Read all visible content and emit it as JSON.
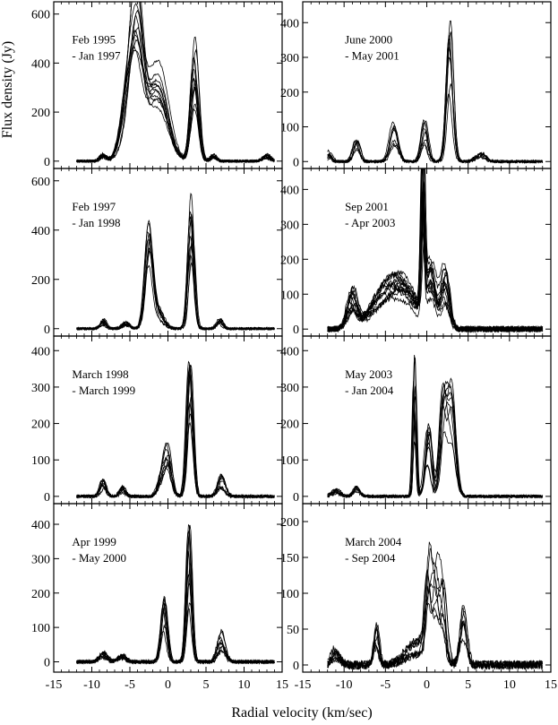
{
  "figure": {
    "xlabel": "Radial velocity (km/sec)",
    "ylabel": "Flux density (Jy)"
  },
  "chart_data": [
    {
      "type": "line",
      "column": 0,
      "row": 0,
      "label_lines": [
        "Feb 1995",
        " - Jan 1997"
      ],
      "xlim": [
        -15,
        15
      ],
      "ylim": [
        -30,
        650
      ],
      "xticks": [
        -15,
        -10,
        -5,
        0,
        5,
        10,
        15
      ],
      "yticks": [
        0,
        200,
        400,
        600
      ],
      "peaks": [
        [
          3.5,
          560,
          0.5
        ],
        [
          -4,
          500,
          0.8
        ],
        [
          -5,
          350,
          1.0
        ],
        [
          -2,
          250,
          1.5
        ],
        [
          -1,
          200,
          1.2
        ],
        [
          -8.5,
          30,
          0.4
        ],
        [
          13,
          30,
          0.5
        ],
        [
          6,
          30,
          0.4
        ]
      ],
      "n_curves": 12,
      "noise": 5
    },
    {
      "type": "line",
      "column": 1,
      "row": 0,
      "label_lines": [
        "June 2000",
        " - May 2001"
      ],
      "xlim": [
        -15,
        15
      ],
      "ylim": [
        -20,
        460
      ],
      "xticks": [
        -15,
        -10,
        -5,
        0,
        5,
        10,
        15
      ],
      "yticks": [
        0,
        100,
        200,
        300,
        400
      ],
      "peaks": [
        [
          2.8,
          420,
          0.4
        ],
        [
          -4,
          120,
          0.5
        ],
        [
          -0.3,
          120,
          0.4
        ],
        [
          -8.5,
          65,
          0.4
        ],
        [
          -11.8,
          30,
          0.3
        ],
        [
          6.5,
          25,
          0.6
        ]
      ],
      "n_curves": 8,
      "noise": 4
    },
    {
      "type": "line",
      "column": 0,
      "row": 1,
      "label_lines": [
        "Feb 1997",
        " - Jan 1998"
      ],
      "xlim": [
        -15,
        15
      ],
      "ylim": [
        -30,
        650
      ],
      "xticks": [
        -15,
        -10,
        -5,
        0,
        5,
        10,
        15
      ],
      "yticks": [
        0,
        200,
        400,
        600
      ],
      "peaks": [
        [
          3.1,
          560,
          0.4
        ],
        [
          -2.5,
          500,
          0.5
        ],
        [
          -1.5,
          100,
          0.8
        ],
        [
          6.8,
          40,
          0.4
        ],
        [
          -8.5,
          40,
          0.4
        ],
        [
          -5.5,
          30,
          0.5
        ]
      ],
      "n_curves": 10,
      "noise": 5
    },
    {
      "type": "line",
      "column": 1,
      "row": 1,
      "label_lines": [
        "Sep 2001",
        " - Apr 2003"
      ],
      "xlim": [
        -15,
        15
      ],
      "ylim": [
        -20,
        460
      ],
      "xticks": [
        -15,
        -10,
        -5,
        0,
        5,
        10,
        15
      ],
      "yticks": [
        0,
        100,
        200,
        300,
        400
      ],
      "peaks": [
        [
          -0.5,
          500,
          0.2
        ],
        [
          0.5,
          200,
          0.6
        ],
        [
          2.2,
          180,
          0.5
        ],
        [
          -2.5,
          120,
          1.5
        ],
        [
          -4.5,
          100,
          1.5
        ],
        [
          -9,
          120,
          0.6
        ],
        [
          -6,
          60,
          1.5
        ]
      ],
      "n_curves": 14,
      "noise": 8
    },
    {
      "type": "line",
      "column": 0,
      "row": 2,
      "label_lines": [
        "March 1998",
        " - March 1999"
      ],
      "xlim": [
        -15,
        15
      ],
      "ylim": [
        -20,
        440
      ],
      "xticks": [
        -15,
        -10,
        -5,
        0,
        5,
        10,
        15
      ],
      "yticks": [
        0,
        100,
        200,
        300,
        400
      ],
      "peaks": [
        [
          2.9,
          380,
          0.4
        ],
        [
          0,
          140,
          0.5
        ],
        [
          -0.8,
          60,
          0.5
        ],
        [
          7,
          60,
          0.5
        ],
        [
          -8.5,
          50,
          0.4
        ],
        [
          -6,
          30,
          0.4
        ]
      ],
      "n_curves": 10,
      "noise": 4
    },
    {
      "type": "line",
      "column": 1,
      "row": 2,
      "label_lines": [
        "May 2003",
        " - Jan 2004"
      ],
      "xlim": [
        -15,
        15
      ],
      "ylim": [
        -20,
        440
      ],
      "xticks": [
        -15,
        -10,
        -5,
        0,
        5,
        10,
        15
      ],
      "yticks": [
        0,
        100,
        200,
        300,
        400
      ],
      "peaks": [
        [
          3,
          360,
          0.5
        ],
        [
          2,
          280,
          0.4
        ],
        [
          -1.5,
          420,
          0.2
        ],
        [
          0.2,
          220,
          0.4
        ],
        [
          -8.5,
          30,
          0.4
        ],
        [
          -11,
          20,
          0.5
        ]
      ],
      "n_curves": 9,
      "noise": 4
    },
    {
      "type": "line",
      "column": 0,
      "row": 3,
      "label_lines": [
        "Apr 1999",
        " - May 2000"
      ],
      "xlim": [
        -15,
        15
      ],
      "ylim": [
        -30,
        460
      ],
      "xticks": [
        -15,
        -10,
        -5,
        0,
        5,
        10,
        15
      ],
      "yticks": [
        0,
        100,
        200,
        300,
        400
      ],
      "peaks": [
        [
          2.8,
          420,
          0.35
        ],
        [
          -0.5,
          200,
          0.4
        ],
        [
          7,
          90,
          0.5
        ],
        [
          -8.5,
          30,
          0.5
        ],
        [
          -6,
          20,
          0.5
        ]
      ],
      "n_curves": 10,
      "noise": 5
    },
    {
      "type": "line",
      "column": 1,
      "row": 3,
      "label_lines": [
        "March 2004",
        " - Sep 2004"
      ],
      "xlim": [
        -15,
        15
      ],
      "ylim": [
        -10,
        225
      ],
      "xticks": [
        -15,
        -10,
        -5,
        0,
        5,
        10,
        15
      ],
      "yticks": [
        0,
        50,
        100,
        150,
        200
      ],
      "peaks": [
        [
          0.2,
          140,
          0.35
        ],
        [
          1,
          120,
          0.4
        ],
        [
          2,
          110,
          0.4
        ],
        [
          4.5,
          90,
          0.4
        ],
        [
          -6,
          65,
          0.3
        ],
        [
          -1,
          40,
          1.5
        ],
        [
          -11,
          25,
          0.5
        ]
      ],
      "n_curves": 8,
      "noise": 6
    }
  ]
}
